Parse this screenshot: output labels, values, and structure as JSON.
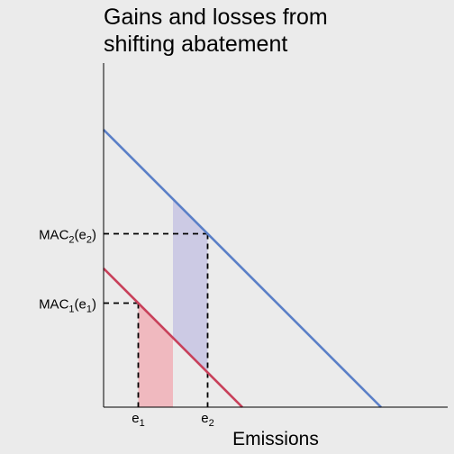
{
  "chart_data": {
    "type": "line",
    "title_lines": [
      "Gains and losses from",
      "shifting abatement"
    ],
    "xlabel": "Emissions",
    "ylabel": "",
    "xlim": [
      0,
      10
    ],
    "ylim": [
      0,
      10
    ],
    "grid": false,
    "series": [
      {
        "name": "",
        "color": "#5b7fc7",
        "x": [
          0,
          8
        ],
        "y": [
          8,
          0
        ]
      },
      {
        "name": "",
        "color": "#c8405a",
        "x": [
          0,
          4
        ],
        "y": [
          4,
          0
        ]
      }
    ],
    "shaded_areas": [
      {
        "color": "#f0b9bf",
        "x_from": 1,
        "x_to": 2,
        "under": "MAC1"
      },
      {
        "color": "#cccae4",
        "x_from": 2,
        "x_to": 3,
        "under": "MAC2",
        "above": "MAC1"
      }
    ],
    "reference_points": [
      {
        "x": 1,
        "y": 3
      },
      {
        "x": 3,
        "y": 5
      }
    ],
    "x_ticks": [
      {
        "value": 1,
        "base": "e",
        "sub": "1"
      },
      {
        "value": 3,
        "base": "e",
        "sub": "2"
      }
    ],
    "y_ticks": [
      {
        "value": 3,
        "base": "MAC",
        "sub": "1",
        "arg_base": "e",
        "arg_sub": "1"
      },
      {
        "value": 5,
        "base": "MAC",
        "sub": "2",
        "arg_base": "e",
        "arg_sub": "2"
      }
    ]
  }
}
